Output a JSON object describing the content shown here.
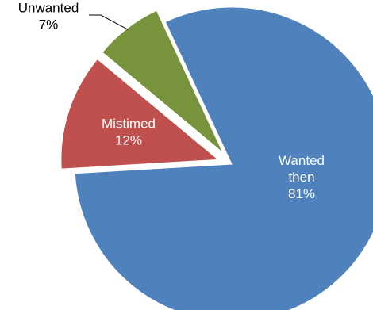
{
  "chart_data": {
    "type": "pie",
    "slices": [
      {
        "name": "Wanted then",
        "label_lines": [
          "Wanted",
          "then"
        ],
        "value": 81,
        "value_label": "81%",
        "color": "#4F81BD",
        "label_color": "#FFFFFF"
      },
      {
        "name": "Mistimed",
        "label_lines": [
          "Mistimed"
        ],
        "value": 12,
        "value_label": "12%",
        "color": "#C0504D",
        "label_color": "#FFFFFF"
      },
      {
        "name": "Unwanted",
        "label_lines": [
          "Unwanted"
        ],
        "value": 7,
        "value_label": "7%",
        "color": "#77933C",
        "label_color": "#000000"
      }
    ],
    "legend": "none",
    "title": ""
  }
}
